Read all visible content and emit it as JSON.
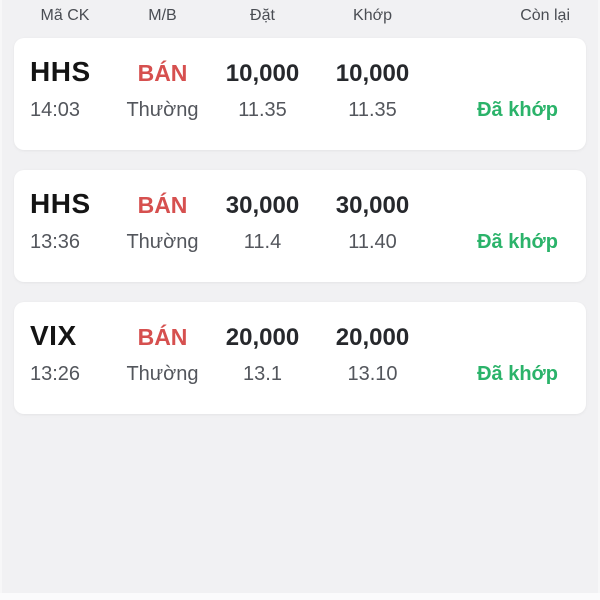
{
  "header": {
    "columns": [
      "Mã CK",
      "M/B",
      "Đặt",
      "Khớp",
      "Còn lại"
    ]
  },
  "orders": [
    {
      "symbol": "HHS",
      "side": "BÁN",
      "qty_ordered": "10,000",
      "qty_matched": "10,000",
      "time": "14:03",
      "order_type": "Thường",
      "price_ordered": "11.35",
      "price_matched": "11.35",
      "status": "Đã khớp"
    },
    {
      "symbol": "HHS",
      "side": "BÁN",
      "qty_ordered": "30,000",
      "qty_matched": "30,000",
      "time": "13:36",
      "order_type": "Thường",
      "price_ordered": "11.4",
      "price_matched": "11.40",
      "status": "Đã khớp"
    },
    {
      "symbol": "VIX",
      "side": "BÁN",
      "qty_ordered": "20,000",
      "qty_matched": "20,000",
      "time": "13:26",
      "order_type": "Thường",
      "price_ordered": "13.1",
      "price_matched": "13.10",
      "status": "Đã khớp"
    }
  ],
  "colors": {
    "sell_red": "#d6504f",
    "status_green": "#2bb36a",
    "page_background": "#f1f1f3",
    "card_background": "#ffffff"
  }
}
